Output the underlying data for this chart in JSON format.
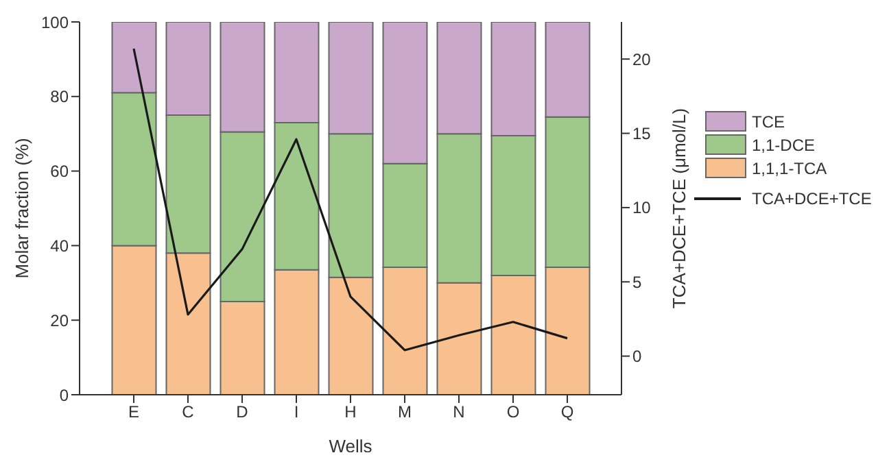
{
  "chart_data": {
    "type": "bar",
    "stacked": true,
    "xlabel": "Wells",
    "ylabel": "Molar fraction (%)",
    "y2label": "TCA+DCE+TCE (μmol/L)",
    "categories": [
      "E",
      "C",
      "D",
      "I",
      "H",
      "M",
      "N",
      "O",
      "Q"
    ],
    "series": [
      {
        "name": "1,1,1-TCA",
        "color": "#f8bf8f",
        "values": [
          40,
          38,
          25,
          33.5,
          31.5,
          34.2,
          30,
          32,
          34.2
        ]
      },
      {
        "name": "1,1-DCE",
        "color": "#9ec98a",
        "values": [
          41,
          37,
          45.5,
          39.5,
          38.5,
          27.8,
          40,
          37.5,
          40.3
        ]
      },
      {
        "name": "TCE",
        "color": "#c9a8cc",
        "values": [
          19,
          25,
          29.5,
          27,
          30,
          38,
          30,
          30.5,
          25.5
        ]
      },
      {
        "name": "TCA+DCE+TCE",
        "type": "line",
        "axis": "y2",
        "color": "#1a1a1a",
        "values": [
          20.7,
          2.8,
          7.2,
          14.6,
          4.0,
          0.4,
          1.4,
          2.3,
          1.2
        ]
      }
    ],
    "ylim": [
      0,
      100
    ],
    "yticks": [
      0,
      20,
      40,
      60,
      80,
      100
    ],
    "y2lim": [
      -2.6,
      22.5
    ],
    "y2ticks": [
      0,
      5,
      10,
      15,
      20
    ],
    "grid": false,
    "legend": "right",
    "marker": "none",
    "line_style": "solid"
  }
}
